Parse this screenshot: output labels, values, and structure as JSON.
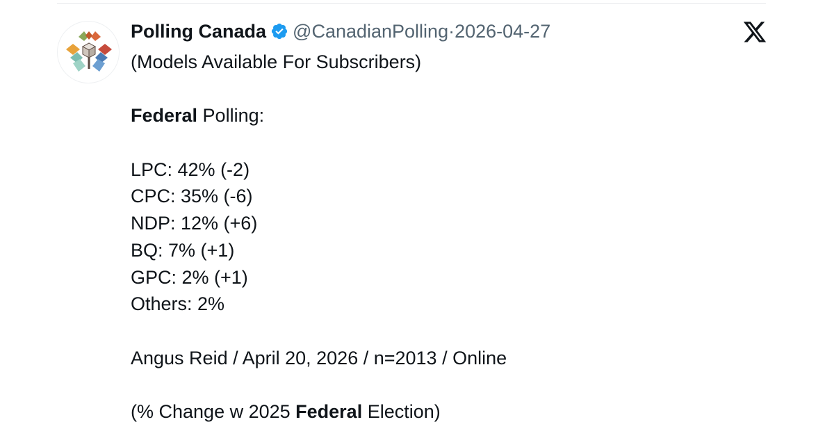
{
  "tweet": {
    "display_name": "Polling Canada",
    "handle": "@CanadianPolling",
    "separator": "·",
    "date": "2026-04-27",
    "verified_icon": "verified-badge-icon",
    "verified_color": "#1d9bf0",
    "platform_icon": "x-logo-icon",
    "lines": {
      "subscribers": "(Models Available For Subscribers)",
      "heading_bold": "Federal",
      "heading_rest": " Polling:",
      "lpc": "LPC: 42% (-2)",
      "cpc": "CPC: 35% (-6)",
      "ndp": "NDP: 12% (+6)",
      "bq": "BQ: 7% (+1)",
      "gpc": "GPC: 2% (+1)",
      "others": "Others: 2%",
      "source": "Angus Reid / April 20, 2026 / n=2013 / Online",
      "note_pre": "(% Change w 2025 ",
      "note_bold": "Federal",
      "note_post": " Election)"
    }
  },
  "colors": {
    "text": "#0f1419",
    "muted": "#536471",
    "verified": "#1d9bf0",
    "divider": "#e4e7ea"
  }
}
